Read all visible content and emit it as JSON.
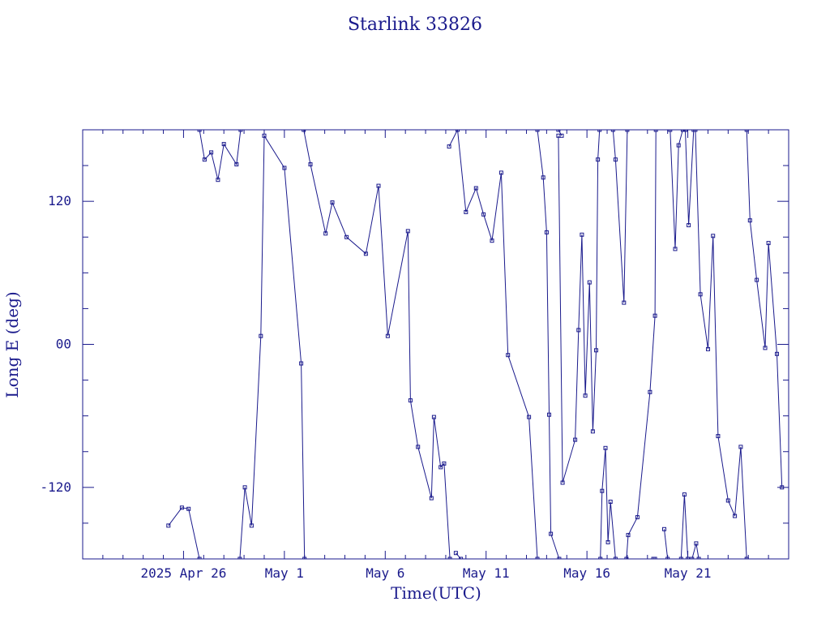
{
  "chart_data": {
    "type": "line",
    "title": "Starlink 33826",
    "xlabel": "Time(UTC)",
    "ylabel": "Long E (deg)",
    "xlim": [
      "2025-04-21",
      "2025-05-26"
    ],
    "ylim": [
      -180,
      180
    ],
    "xticks": [
      {
        "date": "2025-04-26",
        "label": "2025 Apr 26"
      },
      {
        "date": "2025-05-01",
        "label": "May  1"
      },
      {
        "date": "2025-05-06",
        "label": "May  6"
      },
      {
        "date": "2025-05-11",
        "label": "May 11"
      },
      {
        "date": "2025-05-16",
        "label": "May 16"
      },
      {
        "date": "2025-05-21",
        "label": "May 21"
      }
    ],
    "yticks": [
      {
        "value": 120,
        "label": "120"
      },
      {
        "value": 0,
        "label": "00"
      },
      {
        "value": -120,
        "label": "-120"
      }
    ],
    "grid": false,
    "color": "#1a1a8c",
    "series": [
      {
        "points": [
          [
            "2025-04-25T06:00",
            -152
          ],
          [
            "2025-04-25T22:00",
            -137
          ],
          [
            "2025-04-26T06:00",
            -138
          ],
          [
            "2025-04-26T19:00",
            -180
          ]
        ]
      },
      {
        "points": [
          [
            "2025-04-26T19:00",
            180
          ],
          [
            "2025-04-27T01:00",
            155
          ],
          [
            "2025-04-27T09:00",
            161
          ],
          [
            "2025-04-27T17:00",
            138
          ],
          [
            "2025-04-28T00:00",
            168
          ],
          [
            "2025-04-28T15:00",
            151
          ],
          [
            "2025-04-28T20:00",
            180
          ]
        ]
      },
      {
        "points": [
          [
            "2025-04-28T19:00",
            -180
          ],
          [
            "2025-04-29T01:00",
            -120
          ],
          [
            "2025-04-29T09:00",
            -152
          ],
          [
            "2025-04-29T20:00",
            7
          ],
          [
            "2025-04-30T00:00",
            175
          ],
          [
            "2025-05-01T00:00",
            148
          ],
          [
            "2025-05-01T20:00",
            -16
          ],
          [
            "2025-05-02T00:00",
            -180
          ]
        ]
      },
      {
        "points": [
          [
            "2025-05-01T23:00",
            180
          ],
          [
            "2025-05-02T07:00",
            151
          ],
          [
            "2025-05-03T01:00",
            93
          ],
          [
            "2025-05-03T09:00",
            119
          ],
          [
            "2025-05-04T02:00",
            90
          ],
          [
            "2025-05-05T01:00",
            76
          ],
          [
            "2025-05-05T16:00",
            133
          ],
          [
            "2025-05-06T03:00",
            7
          ],
          [
            "2025-05-07T03:00",
            95
          ],
          [
            "2025-05-07T06:00",
            -47
          ],
          [
            "2025-05-07T15:00",
            -86
          ],
          [
            "2025-05-08T07:00",
            -129
          ],
          [
            "2025-05-08T10:00",
            -61
          ],
          [
            "2025-05-08T18:00",
            -103
          ],
          [
            "2025-05-08T22:00",
            -100
          ],
          [
            "2025-05-09T05:00",
            -180
          ]
        ]
      },
      {
        "points": [
          [
            "2025-05-09T12:00",
            -175
          ],
          [
            "2025-05-09T18:00",
            -180
          ]
        ]
      },
      {
        "points": [
          [
            "2025-05-09T04:00",
            166
          ],
          [
            "2025-05-09T14:00",
            180
          ],
          [
            "2025-05-10T00:00",
            111
          ],
          [
            "2025-05-10T12:00",
            131
          ],
          [
            "2025-05-10T21:00",
            109
          ],
          [
            "2025-05-11T07:00",
            87
          ],
          [
            "2025-05-11T18:00",
            144
          ],
          [
            "2025-05-12T02:00",
            -9
          ],
          [
            "2025-05-13T03:00",
            -61
          ],
          [
            "2025-05-13T13:00",
            -180
          ]
        ]
      },
      {
        "points": [
          [
            "2025-05-13T13:00",
            180
          ],
          [
            "2025-05-13T20:00",
            140
          ],
          [
            "2025-05-14T00:00",
            94
          ],
          [
            "2025-05-14T03:00",
            -59
          ],
          [
            "2025-05-14T05:00",
            -159
          ],
          [
            "2025-05-14T15:00",
            -180
          ]
        ]
      },
      {
        "points": [
          [
            "2025-05-14T14:00",
            180
          ],
          [
            "2025-05-14T18:00",
            175
          ]
        ]
      },
      {
        "points": [
          [
            "2025-05-14T14:00",
            175
          ],
          [
            "2025-05-14T19:00",
            -116
          ],
          [
            "2025-05-15T10:00",
            -80
          ],
          [
            "2025-05-15T14:00",
            12
          ],
          [
            "2025-05-15T18:00",
            92
          ],
          [
            "2025-05-15T22:00",
            -43
          ],
          [
            "2025-05-16T03:00",
            52
          ],
          [
            "2025-05-16T07:00",
            -73
          ],
          [
            "2025-05-16T11:00",
            -5
          ],
          [
            "2025-05-16T13:00",
            155
          ],
          [
            "2025-05-16T15:00",
            180
          ]
        ]
      },
      {
        "points": [
          [
            "2025-05-16T16:00",
            -180
          ],
          [
            "2025-05-16T18:00",
            -123
          ],
          [
            "2025-05-16T22:00",
            -87
          ],
          [
            "2025-05-17T01:00",
            -166
          ],
          [
            "2025-05-17T04:00",
            -132
          ],
          [
            "2025-05-17T10:00",
            -180
          ]
        ]
      },
      {
        "points": [
          [
            "2025-05-17T07:00",
            180
          ],
          [
            "2025-05-17T10:00",
            155
          ],
          [
            "2025-05-17T20:00",
            35
          ],
          [
            "2025-05-18T00:00",
            180
          ]
        ]
      },
      {
        "points": [
          [
            "2025-05-17T23:00",
            -180
          ],
          [
            "2025-05-18T01:00",
            -160
          ],
          [
            "2025-05-18T12:00",
            -145
          ],
          [
            "2025-05-19T03:00",
            -40
          ],
          [
            "2025-05-19T09:00",
            24
          ],
          [
            "2025-05-19T10:00",
            180
          ]
        ]
      },
      {
        "points": [
          [
            "2025-05-19T07:00",
            -180
          ],
          [
            "2025-05-19T09:00",
            -180
          ]
        ]
      },
      {
        "points": [
          [
            "2025-05-19T20:00",
            -155
          ],
          [
            "2025-05-20T00:00",
            -180
          ]
        ]
      },
      {
        "points": [
          [
            "2025-05-20T03:00",
            180
          ],
          [
            "2025-05-20T09:00",
            80
          ],
          [
            "2025-05-20T13:00",
            167
          ],
          [
            "2025-05-20T18:00",
            180
          ]
        ]
      },
      {
        "points": [
          [
            "2025-05-20T16:00",
            -180
          ],
          [
            "2025-05-20T20:00",
            -126
          ],
          [
            "2025-05-21T00:00",
            -180
          ]
        ]
      },
      {
        "points": [
          [
            "2025-05-20T21:00",
            180
          ],
          [
            "2025-05-21T01:00",
            100
          ],
          [
            "2025-05-21T07:00",
            180
          ]
        ]
      },
      {
        "points": [
          [
            "2025-05-21T05:00",
            -180
          ],
          [
            "2025-05-21T10:00",
            -167
          ],
          [
            "2025-05-21T13:00",
            -180
          ]
        ]
      },
      {
        "points": [
          [
            "2025-05-21T09:00",
            180
          ],
          [
            "2025-05-21T15:00",
            42
          ],
          [
            "2025-05-22T00:00",
            -4
          ],
          [
            "2025-05-22T06:00",
            91
          ],
          [
            "2025-05-22T12:00",
            -77
          ],
          [
            "2025-05-23T00:00",
            -131
          ],
          [
            "2025-05-23T08:00",
            -144
          ],
          [
            "2025-05-23T15:00",
            -86
          ],
          [
            "2025-05-23T22:00",
            -180
          ]
        ]
      },
      {
        "points": [
          [
            "2025-05-23T22:00",
            180
          ],
          [
            "2025-05-24T02:00",
            104
          ],
          [
            "2025-05-24T10:00",
            54
          ],
          [
            "2025-05-24T20:00",
            -3
          ],
          [
            "2025-05-25T00:00",
            85
          ],
          [
            "2025-05-25T10:00",
            -8
          ],
          [
            "2025-05-25T16:00",
            -120
          ]
        ]
      }
    ]
  }
}
